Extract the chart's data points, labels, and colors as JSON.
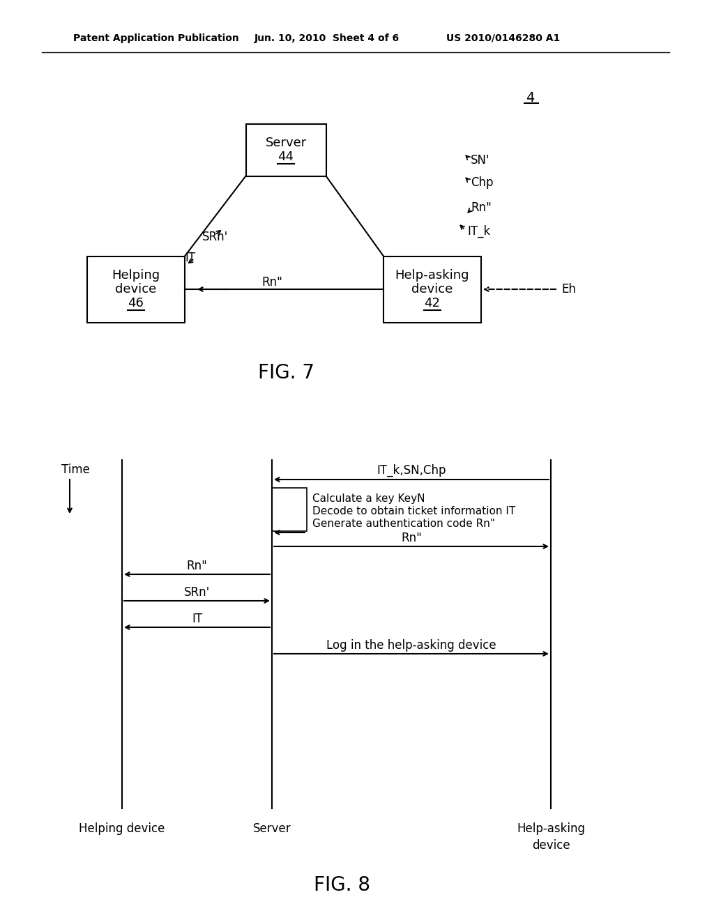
{
  "bg_color": "#ffffff",
  "header_left": "Patent Application Publication",
  "header_mid": "Jun. 10, 2010  Sheet 4 of 6",
  "header_right": "US 2010/0146280 A1",
  "fig7_label": "FIG. 7",
  "fig8_label": "FIG. 8",
  "fig7_number": "4",
  "server_text1": "Server",
  "server_text2": "44",
  "helping_text1": "Helping",
  "helping_text2": "device",
  "helping_text3": "46",
  "help_asking_text1": "Help-asking",
  "help_asking_text2": "device",
  "help_asking_text3": "42",
  "srn_label": "SRn'",
  "it_label": "IT",
  "sn_label": "SN'",
  "chp_label": "Chp",
  "rn_right_label": "Rn\"",
  "it_k_label": "IT_k",
  "rn_bottom_label": "Rn\"",
  "eh_label": "Eh",
  "time_label": "Time",
  "seq_it_k_label": "IT_k,SN,Chp",
  "seq_calc_line1": "Calculate a key KeyN",
  "seq_calc_line2": "Decode to obtain ticket information IT",
  "seq_calc_line3": "Generate authentication code Rn\"",
  "seq_rn_to_ask_label": "Rn\"",
  "seq_rn_to_help_label": "Rn\"",
  "seq_srn_label": "SRn'",
  "seq_it_label": "IT",
  "seq_log_label": "Log in the help-asking device",
  "helping_device_bottom": "Helping device",
  "server_bottom": "Server",
  "help_asking_bottom": "Help-asking\ndevice"
}
